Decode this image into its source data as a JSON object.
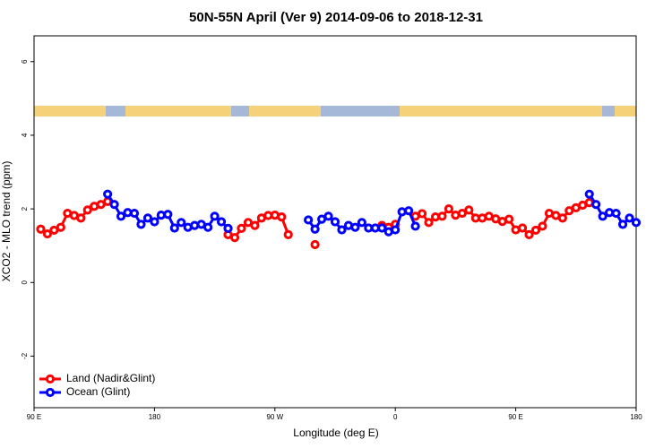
{
  "chart_data": {
    "type": "line",
    "title": "50N-55N April (Ver 9)   2014-09-06 to 2018-12-31",
    "x_label": "Longitude (deg E)",
    "y_label": "XCO2 - MLO trend (ppm)",
    "xlim": [
      90,
      540
    ],
    "ylim": [
      -3.4,
      6.7
    ],
    "xticks": [
      {
        "value": 90,
        "label": "90 E"
      },
      180,
      {
        "value": 270,
        "label": "90 W"
      },
      {
        "value": 360,
        "label": "0"
      },
      {
        "value": 450,
        "label": "90 E"
      },
      {
        "value": 540,
        "label": "180"
      }
    ],
    "yticks": [
      -2,
      0,
      2,
      4,
      6
    ],
    "legend": "bottom-left",
    "series": [
      {
        "name": "Land (Nadir&Glint)",
        "color": "#ff0000",
        "x": [
          95,
          100,
          105,
          110,
          115,
          120,
          125,
          130,
          135,
          140,
          145,
          null,
          235,
          240,
          245,
          250,
          255,
          260,
          265,
          270,
          275,
          280,
          null,
          300,
          null,
          350,
          355,
          360,
          null,
          375,
          380,
          385,
          390,
          395,
          400,
          405,
          410,
          415,
          420,
          425,
          430,
          435,
          440,
          445,
          450,
          455,
          460,
          465,
          470,
          475,
          480,
          485,
          490,
          495,
          500,
          505
        ],
        "values": [
          1.45,
          1.32,
          1.42,
          1.5,
          1.88,
          1.82,
          1.75,
          1.97,
          2.07,
          2.12,
          2.2,
          null,
          1.3,
          1.22,
          1.47,
          1.63,
          1.55,
          1.75,
          1.82,
          1.83,
          1.78,
          1.3,
          null,
          1.03,
          null,
          1.55,
          1.5,
          1.58,
          null,
          1.8,
          1.87,
          1.63,
          1.78,
          1.8,
          2.0,
          1.83,
          1.88,
          1.97,
          1.75,
          1.75,
          1.8,
          1.73,
          1.66,
          1.72,
          1.43,
          1.48,
          1.3,
          1.42,
          1.53,
          1.88,
          1.82,
          1.75,
          1.95,
          2.03,
          2.1,
          2.17
        ]
      },
      {
        "name": "Ocean (Glint)",
        "color": "#0000ff",
        "x": [
          145,
          150,
          155,
          160,
          165,
          170,
          175,
          180,
          185,
          190,
          195,
          200,
          205,
          210,
          215,
          220,
          225,
          230,
          235,
          null,
          295,
          300,
          305,
          310,
          315,
          320,
          325,
          330,
          335,
          340,
          345,
          350,
          355,
          360,
          365,
          370,
          375,
          null,
          505,
          510,
          515,
          520,
          525,
          530,
          535,
          540
        ],
        "values": [
          2.4,
          2.12,
          1.8,
          1.9,
          1.88,
          1.58,
          1.75,
          1.65,
          1.83,
          1.85,
          1.48,
          1.63,
          1.5,
          1.55,
          1.58,
          1.5,
          1.8,
          1.65,
          1.47,
          null,
          1.7,
          1.45,
          1.72,
          1.8,
          1.65,
          1.43,
          1.55,
          1.5,
          1.63,
          1.48,
          1.48,
          1.48,
          1.38,
          1.43,
          1.92,
          1.95,
          1.53,
          null,
          2.4,
          2.12,
          1.8,
          1.9,
          1.88,
          1.58,
          1.75,
          1.63
        ]
      }
    ]
  }
}
